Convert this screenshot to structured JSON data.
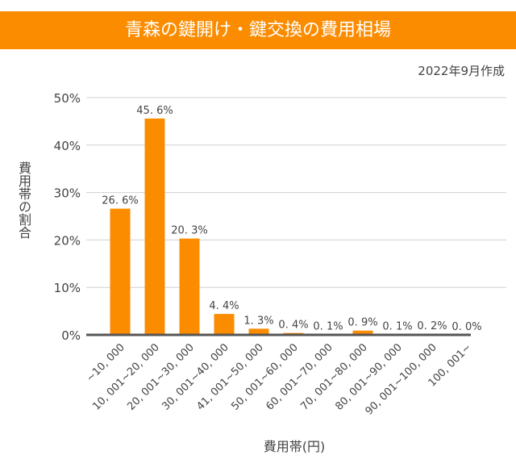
{
  "title": "青森の鍵開け・鍵交換の費用相場",
  "date_note": "2022年9月作成",
  "chart_data": {
    "type": "bar",
    "title": "青森の鍵開け・鍵交換の費用相場",
    "xlabel": "費用帯(円)",
    "ylabel": "費用帯の割合",
    "ylim": [
      0,
      50
    ],
    "yticks": [
      "0%",
      "10%",
      "20%",
      "30%",
      "40%",
      "50%"
    ],
    "grid": true,
    "categories": [
      "~10, 000",
      "10, 001~20, 000",
      "20, 001~30, 000",
      "30, 001~40, 000",
      "41, 001~50, 000",
      "50, 001~60, 000",
      "60, 001~70, 000",
      "70, 001~80, 000",
      "80, 001~90, 000",
      "90, 001~100, 000",
      "100, 001~"
    ],
    "values": [
      26.6,
      45.6,
      20.3,
      4.4,
      1.3,
      0.4,
      0.1,
      0.9,
      0.1,
      0.2,
      0.0
    ],
    "data_labels": [
      "26. 6%",
      "45. 6%",
      "20. 3%",
      "4. 4%",
      "1. 3%",
      "0. 4%",
      "0. 1%",
      "0. 9%",
      "0. 1%",
      "0. 2%",
      "0. 0%"
    ],
    "bar_color": "#fb8c00"
  }
}
